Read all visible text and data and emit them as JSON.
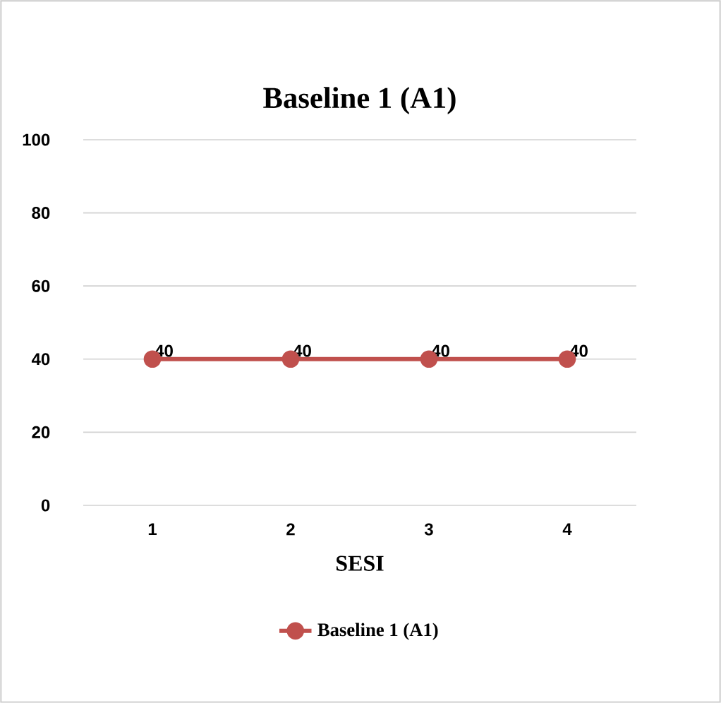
{
  "chart_data": {
    "type": "line",
    "title": "Baseline 1 (A1)",
    "xlabel": "SESI",
    "categories": [
      "1",
      "2",
      "3",
      "4"
    ],
    "series": [
      {
        "name": "Baseline 1 (A1)",
        "color": "#c0504d",
        "values": [
          40,
          40,
          40,
          40
        ]
      }
    ],
    "ylim": [
      0,
      100
    ],
    "yticks": [
      0,
      20,
      40,
      60,
      80,
      100
    ],
    "grid": "y",
    "legend": "bottom",
    "marker": "circle",
    "data_labels": true
  }
}
